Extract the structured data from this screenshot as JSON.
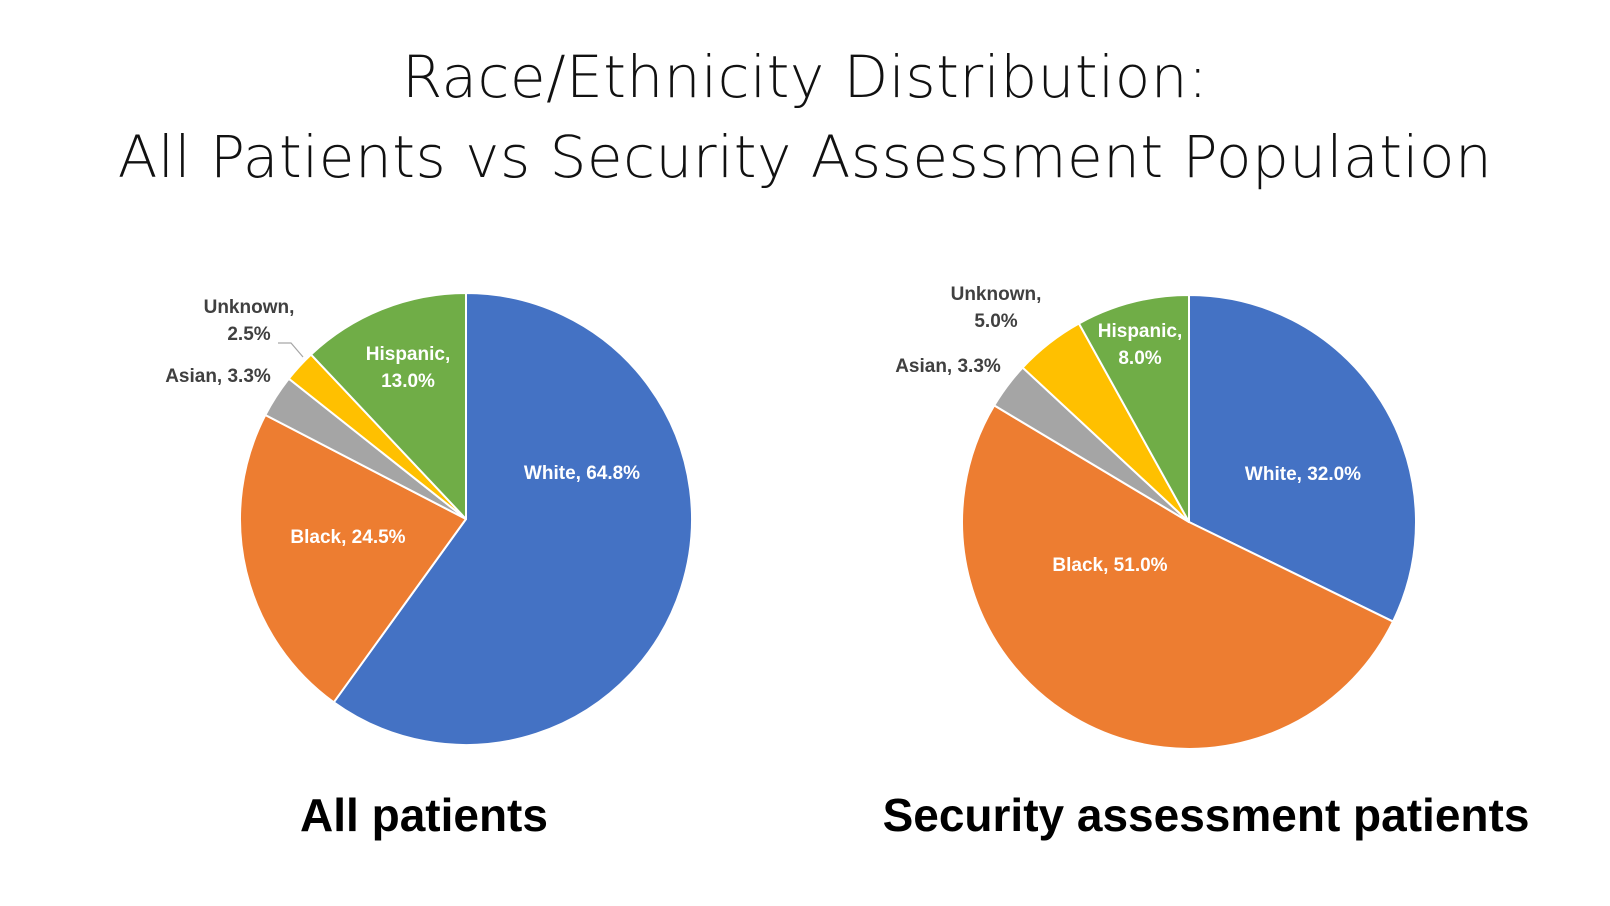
{
  "title": {
    "line1": "Race/Ethnicity Distribution:",
    "line2": "All Patients vs Security Assessment Population"
  },
  "chart_data": [
    {
      "type": "pie",
      "title": "All patients",
      "start_angle_deg": 0,
      "direction": "clockwise",
      "slices": [
        {
          "name": "White",
          "value": 64.8,
          "label": [
            "White, 64.8%"
          ],
          "color": "#4472C4",
          "label_color": "#ffffff",
          "label_inside": true
        },
        {
          "name": "Black",
          "value": 24.5,
          "label": [
            "Black, 24.5%"
          ],
          "color": "#ED7D31",
          "label_color": "#ffffff",
          "label_inside": true
        },
        {
          "name": "Asian",
          "value": 3.3,
          "label": [
            "Asian, 3.3%"
          ],
          "color": "#A5A5A5",
          "label_color": "#404040",
          "label_inside": false
        },
        {
          "name": "Unknown",
          "value": 2.5,
          "label": [
            "Unknown,",
            "2.5%"
          ],
          "color": "#FFC000",
          "label_color": "#404040",
          "label_inside": false,
          "leader_line": true
        },
        {
          "name": "Hispanic",
          "value": 13.0,
          "label": [
            "Hispanic,",
            "13.0%"
          ],
          "color": "#70AD47",
          "label_color": "#ffffff",
          "label_inside": true
        }
      ]
    },
    {
      "type": "pie",
      "title": "Security assessment patients",
      "start_angle_deg": 0,
      "direction": "clockwise",
      "slices": [
        {
          "name": "White",
          "value": 32.0,
          "label": [
            "White, 32.0%"
          ],
          "color": "#4472C4",
          "label_color": "#ffffff",
          "label_inside": true
        },
        {
          "name": "Black",
          "value": 51.0,
          "label": [
            "Black, 51.0%"
          ],
          "color": "#ED7D31",
          "label_color": "#ffffff",
          "label_inside": true
        },
        {
          "name": "Asian",
          "value": 3.3,
          "label": [
            "Asian, 3.3%"
          ],
          "color": "#A5A5A5",
          "label_color": "#404040",
          "label_inside": false
        },
        {
          "name": "Unknown",
          "value": 5.0,
          "label": [
            "Unknown,",
            "5.0%"
          ],
          "color": "#FFC000",
          "label_color": "#404040",
          "label_inside": false
        },
        {
          "name": "Hispanic",
          "value": 8.0,
          "label": [
            "Hispanic,",
            "8.0%"
          ],
          "color": "#70AD47",
          "label_color": "#ffffff",
          "label_inside": true
        }
      ]
    }
  ]
}
